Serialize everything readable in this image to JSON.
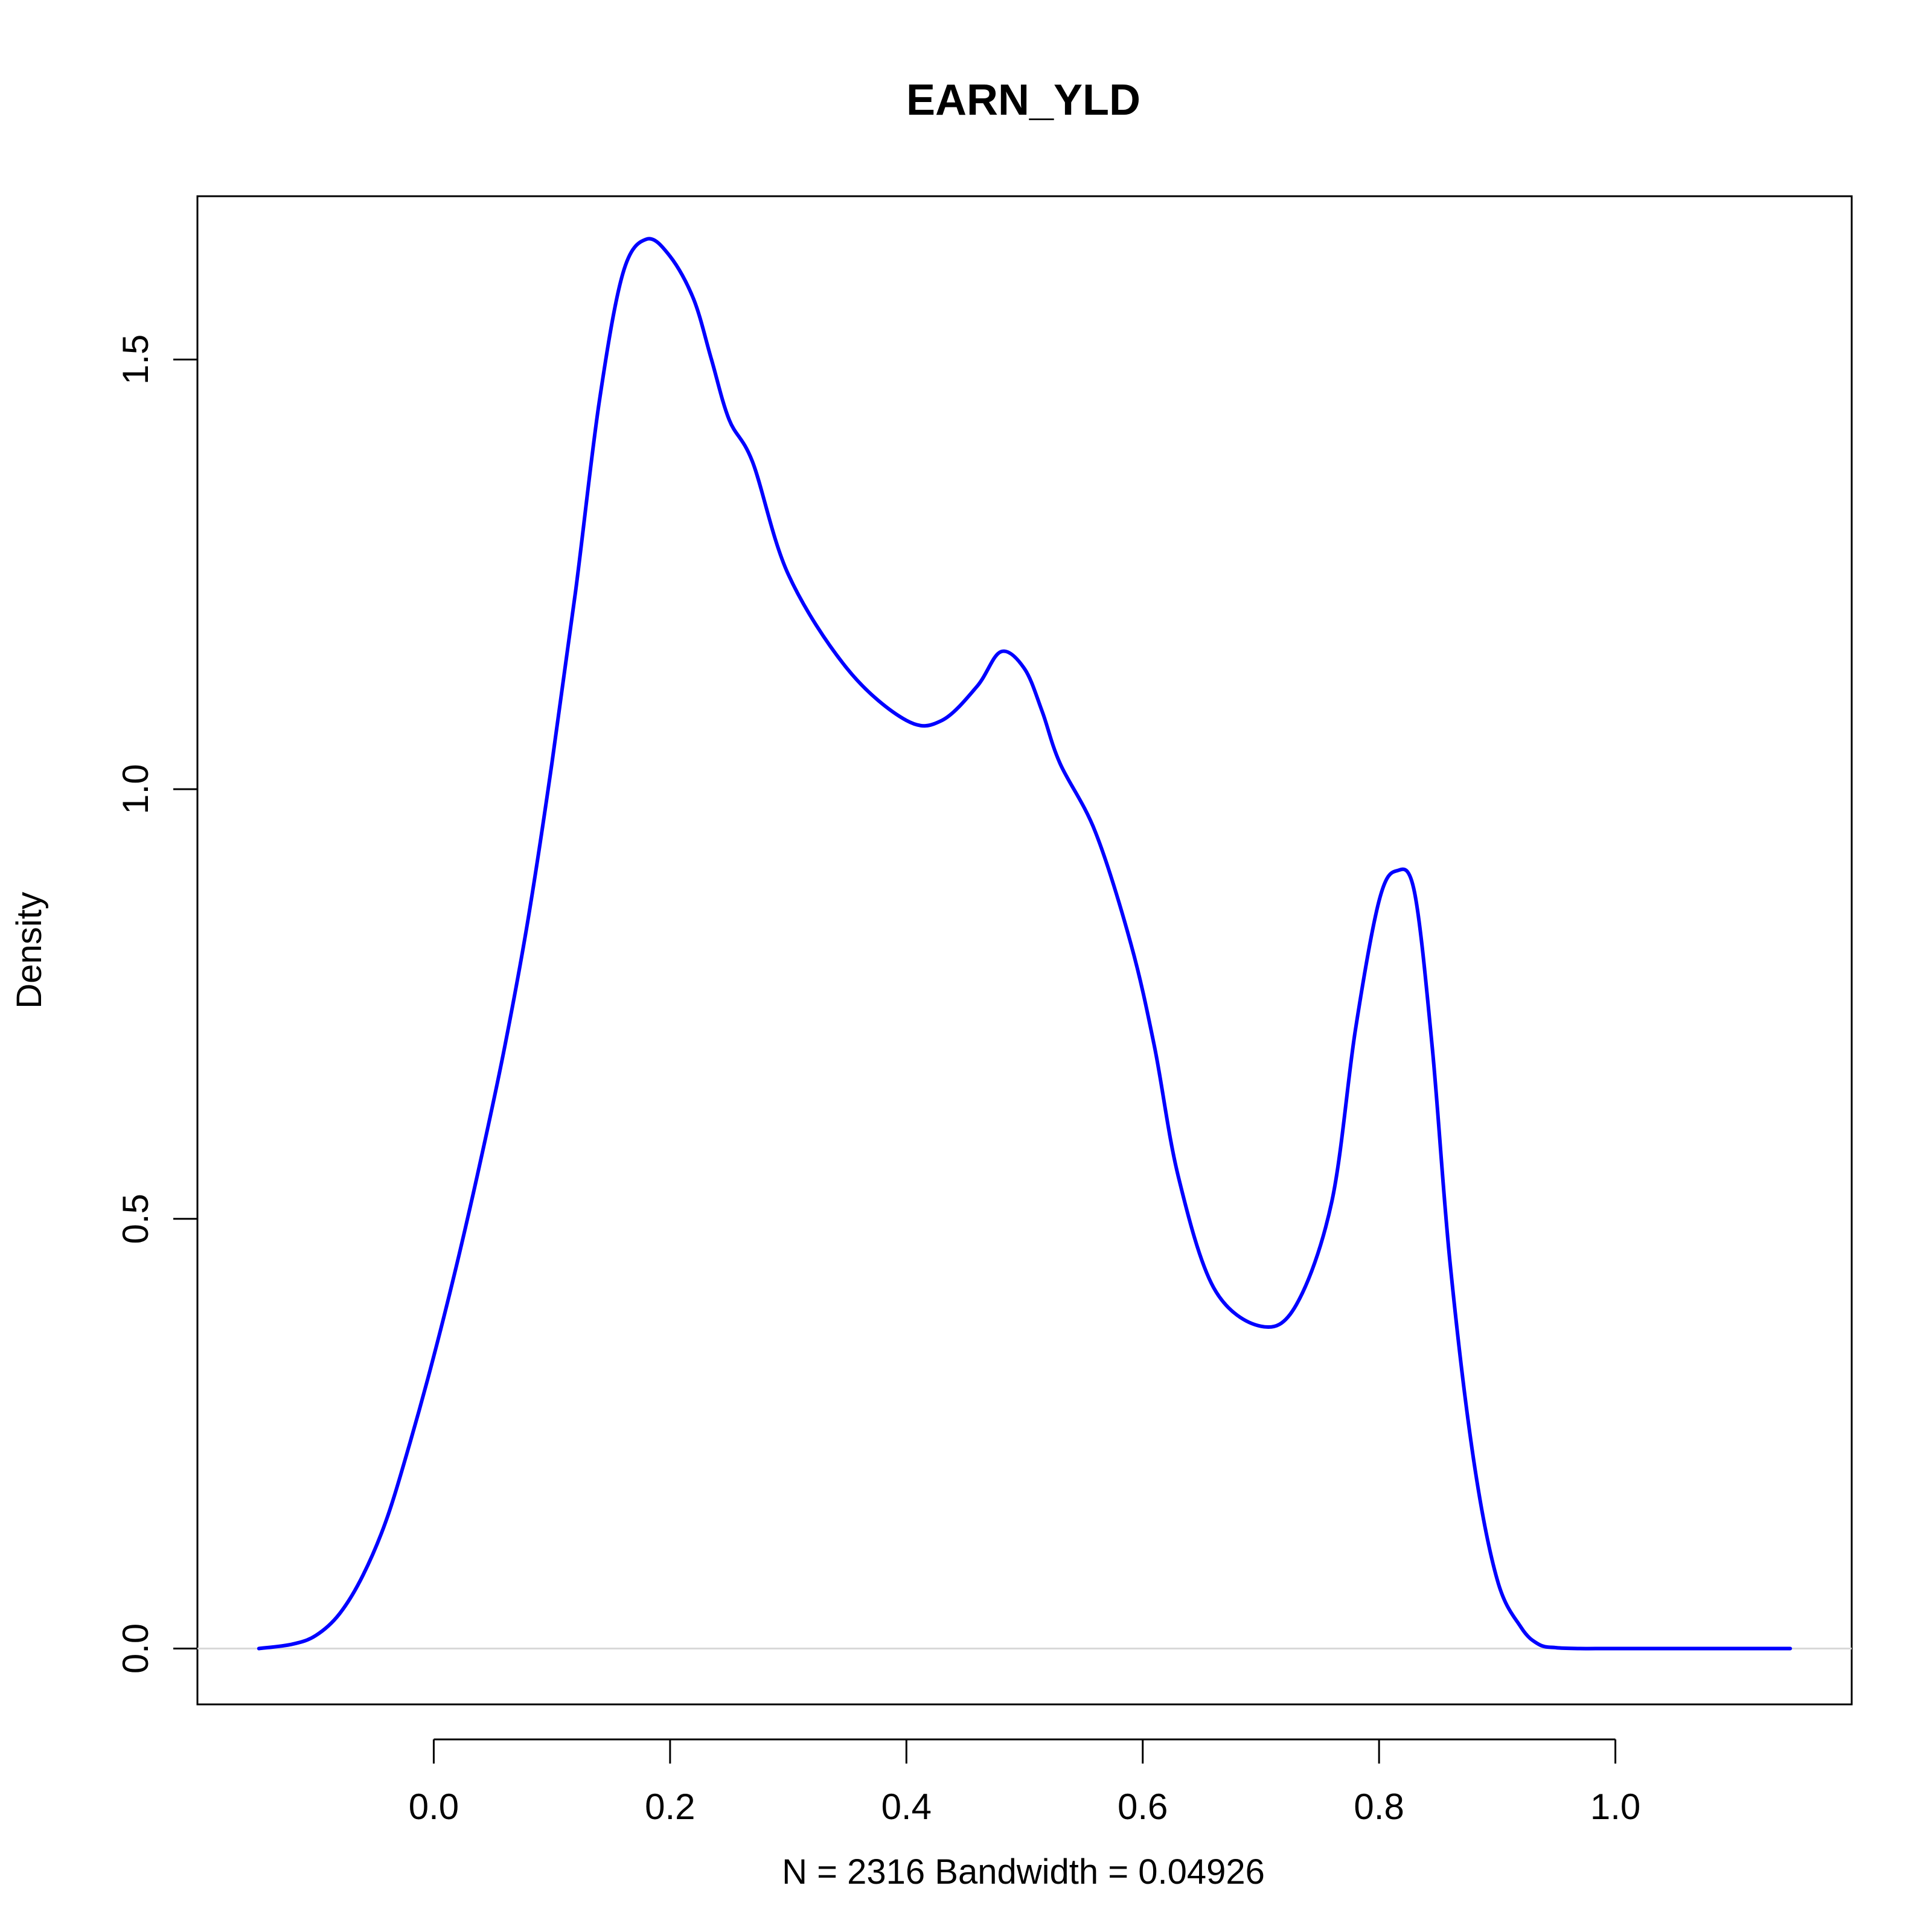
{
  "chart_data": {
    "type": "line",
    "title": "EARN_YLD",
    "xlabel": "N = 2316   Bandwidth = 0.04926",
    "ylabel": "Density",
    "xlim": [
      -0.2,
      1.2
    ],
    "ylim": [
      -0.065,
      1.69
    ],
    "x_ticks": [
      0.0,
      0.2,
      0.4,
      0.6,
      0.8,
      1.0
    ],
    "x_tick_labels": [
      "0.0",
      "0.2",
      "0.4",
      "0.6",
      "0.8",
      "1.0"
    ],
    "y_ticks": [
      0.0,
      0.5,
      1.0,
      1.5
    ],
    "y_tick_labels": [
      "0.0",
      "0.5",
      "1.0",
      "1.5"
    ],
    "zero_line": true,
    "grid": false,
    "legend": "none",
    "line_color": "#0000ff",
    "baseline_color": "#d9d9d9",
    "series": [
      {
        "x": [
          -0.148,
          -0.12,
          -0.1,
          -0.08,
          -0.06,
          -0.04,
          -0.02,
          0.0,
          0.02,
          0.04,
          0.06,
          0.08,
          0.1,
          0.12,
          0.14,
          0.16,
          0.18,
          0.2,
          0.22,
          0.235,
          0.25,
          0.27,
          0.3,
          0.35,
          0.4,
          0.43,
          0.46,
          0.48,
          0.5,
          0.515,
          0.53,
          0.56,
          0.59,
          0.61,
          0.63,
          0.66,
          0.7,
          0.73,
          0.76,
          0.78,
          0.8,
          0.815,
          0.83,
          0.845,
          0.86,
          0.88,
          0.9,
          0.92,
          0.935,
          0.95,
          0.97,
          0.99,
          1.01,
          1.03,
          1.05,
          1.07,
          1.09,
          1.11,
          1.13,
          1.148
        ],
        "y": [
          0.0,
          0.005,
          0.015,
          0.04,
          0.085,
          0.15,
          0.24,
          0.34,
          0.45,
          0.57,
          0.7,
          0.85,
          1.03,
          1.23,
          1.45,
          1.6,
          1.64,
          1.62,
          1.57,
          1.5,
          1.43,
          1.38,
          1.25,
          1.14,
          1.08,
          1.08,
          1.12,
          1.16,
          1.14,
          1.09,
          1.03,
          0.95,
          0.82,
          0.7,
          0.55,
          0.42,
          0.375,
          0.4,
          0.52,
          0.72,
          0.87,
          0.905,
          0.88,
          0.7,
          0.45,
          0.22,
          0.08,
          0.025,
          0.005,
          0.001,
          0.0,
          0.0,
          0.0,
          0.0,
          0.0,
          0.0,
          0.0,
          0.0,
          0.0,
          0.0
        ]
      }
    ]
  }
}
